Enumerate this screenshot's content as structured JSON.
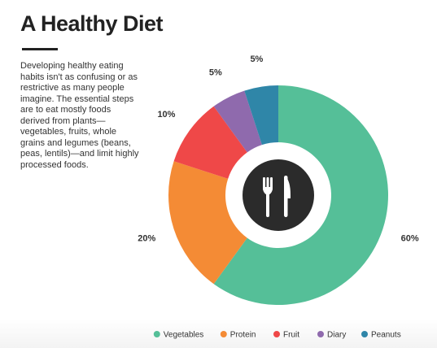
{
  "title": "A Healthy Diet",
  "description": "Developing healthy eating habits isn't as confusing or as restrictive as many people imagine. The essential steps are to eat mostly foods derived from plants—vegetables, fruits, whole grains and legumes (beans, peas, lentils)—and limit highly processed foods.",
  "center_icon": "fork-knife-icon",
  "chart_data": {
    "type": "pie",
    "style": "donut",
    "start": "top",
    "direction": "clockwise",
    "legend_position": "bottom",
    "slices": [
      {
        "label": "Vegetables",
        "value": 60,
        "display": "60%",
        "color": "#55bf98"
      },
      {
        "label": "Protein",
        "value": 20,
        "display": "20%",
        "color": "#f48b35"
      },
      {
        "label": "Fruit",
        "value": 10,
        "display": "10%",
        "color": "#ef4848"
      },
      {
        "label": "Diary",
        "value": 5,
        "display": "5%",
        "color": "#8f6aad"
      },
      {
        "label": "Peanuts",
        "value": 5,
        "display": "5%",
        "color": "#2f86a8"
      }
    ]
  }
}
